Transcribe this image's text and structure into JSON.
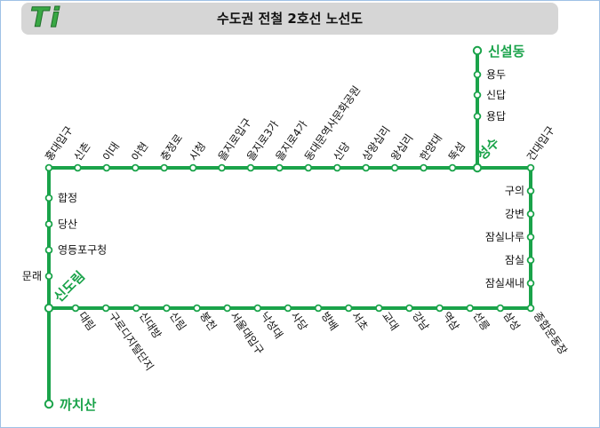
{
  "header": {
    "logo_text": "Ti",
    "title": "수도권 전철 2호선 노선도"
  },
  "colors": {
    "line": "#1aa34a",
    "station_fill": "#ffffff",
    "label": "#111111",
    "transfer_label": "#1aa34a",
    "header_bg": "#d6d6d6"
  },
  "top_row": [
    "홍대입구",
    "신촌",
    "이대",
    "아현",
    "충정로",
    "시청",
    "을지로입구",
    "을지로3가",
    "을지로4가",
    "동대문역사문화공원",
    "신당",
    "상왕십리",
    "왕십리",
    "한양대",
    "뚝섬",
    "성수",
    "건대입구"
  ],
  "right_column": [
    "구의",
    "강변",
    "잠실나루",
    "잠실",
    "잠실새내"
  ],
  "bottom_row": [
    "대림",
    "구로디지털단지",
    "신대방",
    "신림",
    "봉천",
    "서울대입구",
    "낙성대",
    "사당",
    "방배",
    "서초",
    "교대",
    "강남",
    "역삼",
    "선릉",
    "삼성",
    "종합운동장"
  ],
  "left_column": [
    "합정",
    "당산",
    "영등포구청",
    "문래",
    "신도림"
  ],
  "seongsu_branch": [
    "용답",
    "신답",
    "용두",
    "신설동"
  ],
  "sindorim_branch": [
    "까치산"
  ]
}
